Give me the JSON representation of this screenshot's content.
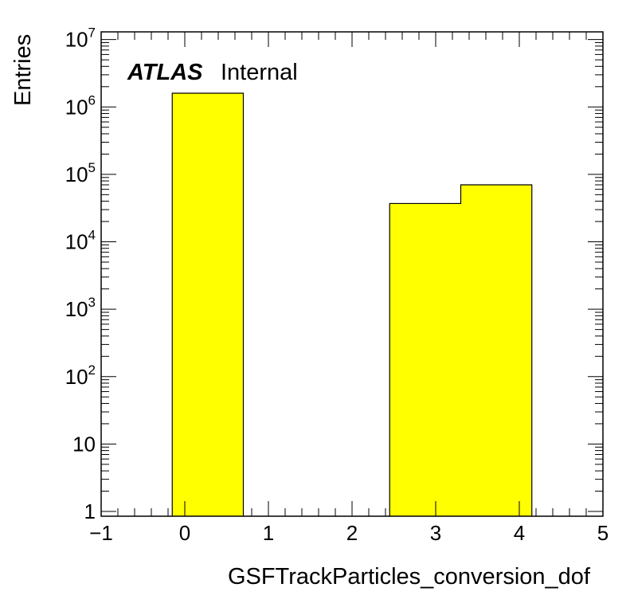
{
  "chart_data": {
    "type": "bar",
    "histogram": true,
    "bin_edges": [
      -0.15,
      0.7,
      1.55,
      2.45,
      3.3,
      4.15
    ],
    "values": [
      1600000,
      0,
      0,
      37000,
      70000
    ],
    "bar_color": "#ffff00",
    "edge_color": "#000000",
    "xlabel": "GSFTrackParticles_conversion_dof",
    "ylabel": "Entries",
    "xlim": [
      -1,
      5
    ],
    "ylim": [
      0.85,
      13000000
    ],
    "ylog": true,
    "x_ticks": [
      {
        "value": -1,
        "label": "−1"
      },
      {
        "value": 0,
        "label": "0"
      },
      {
        "value": 1,
        "label": "1"
      },
      {
        "value": 2,
        "label": "2"
      },
      {
        "value": 3,
        "label": "3"
      },
      {
        "value": 4,
        "label": "4"
      },
      {
        "value": 5,
        "label": "5"
      }
    ],
    "y_ticks": [
      {
        "value": 1,
        "base": "1",
        "exp": ""
      },
      {
        "value": 10,
        "base": "10",
        "exp": ""
      },
      {
        "value": 100,
        "base": "10",
        "exp": "2"
      },
      {
        "value": 1000,
        "base": "10",
        "exp": "3"
      },
      {
        "value": 10000,
        "base": "10",
        "exp": "4"
      },
      {
        "value": 100000,
        "base": "10",
        "exp": "5"
      },
      {
        "value": 1000000,
        "base": "10",
        "exp": "6"
      },
      {
        "value": 10000000,
        "base": "10",
        "exp": "7"
      }
    ],
    "annotation": {
      "bold": "ATLAS",
      "normal": "Internal"
    }
  }
}
